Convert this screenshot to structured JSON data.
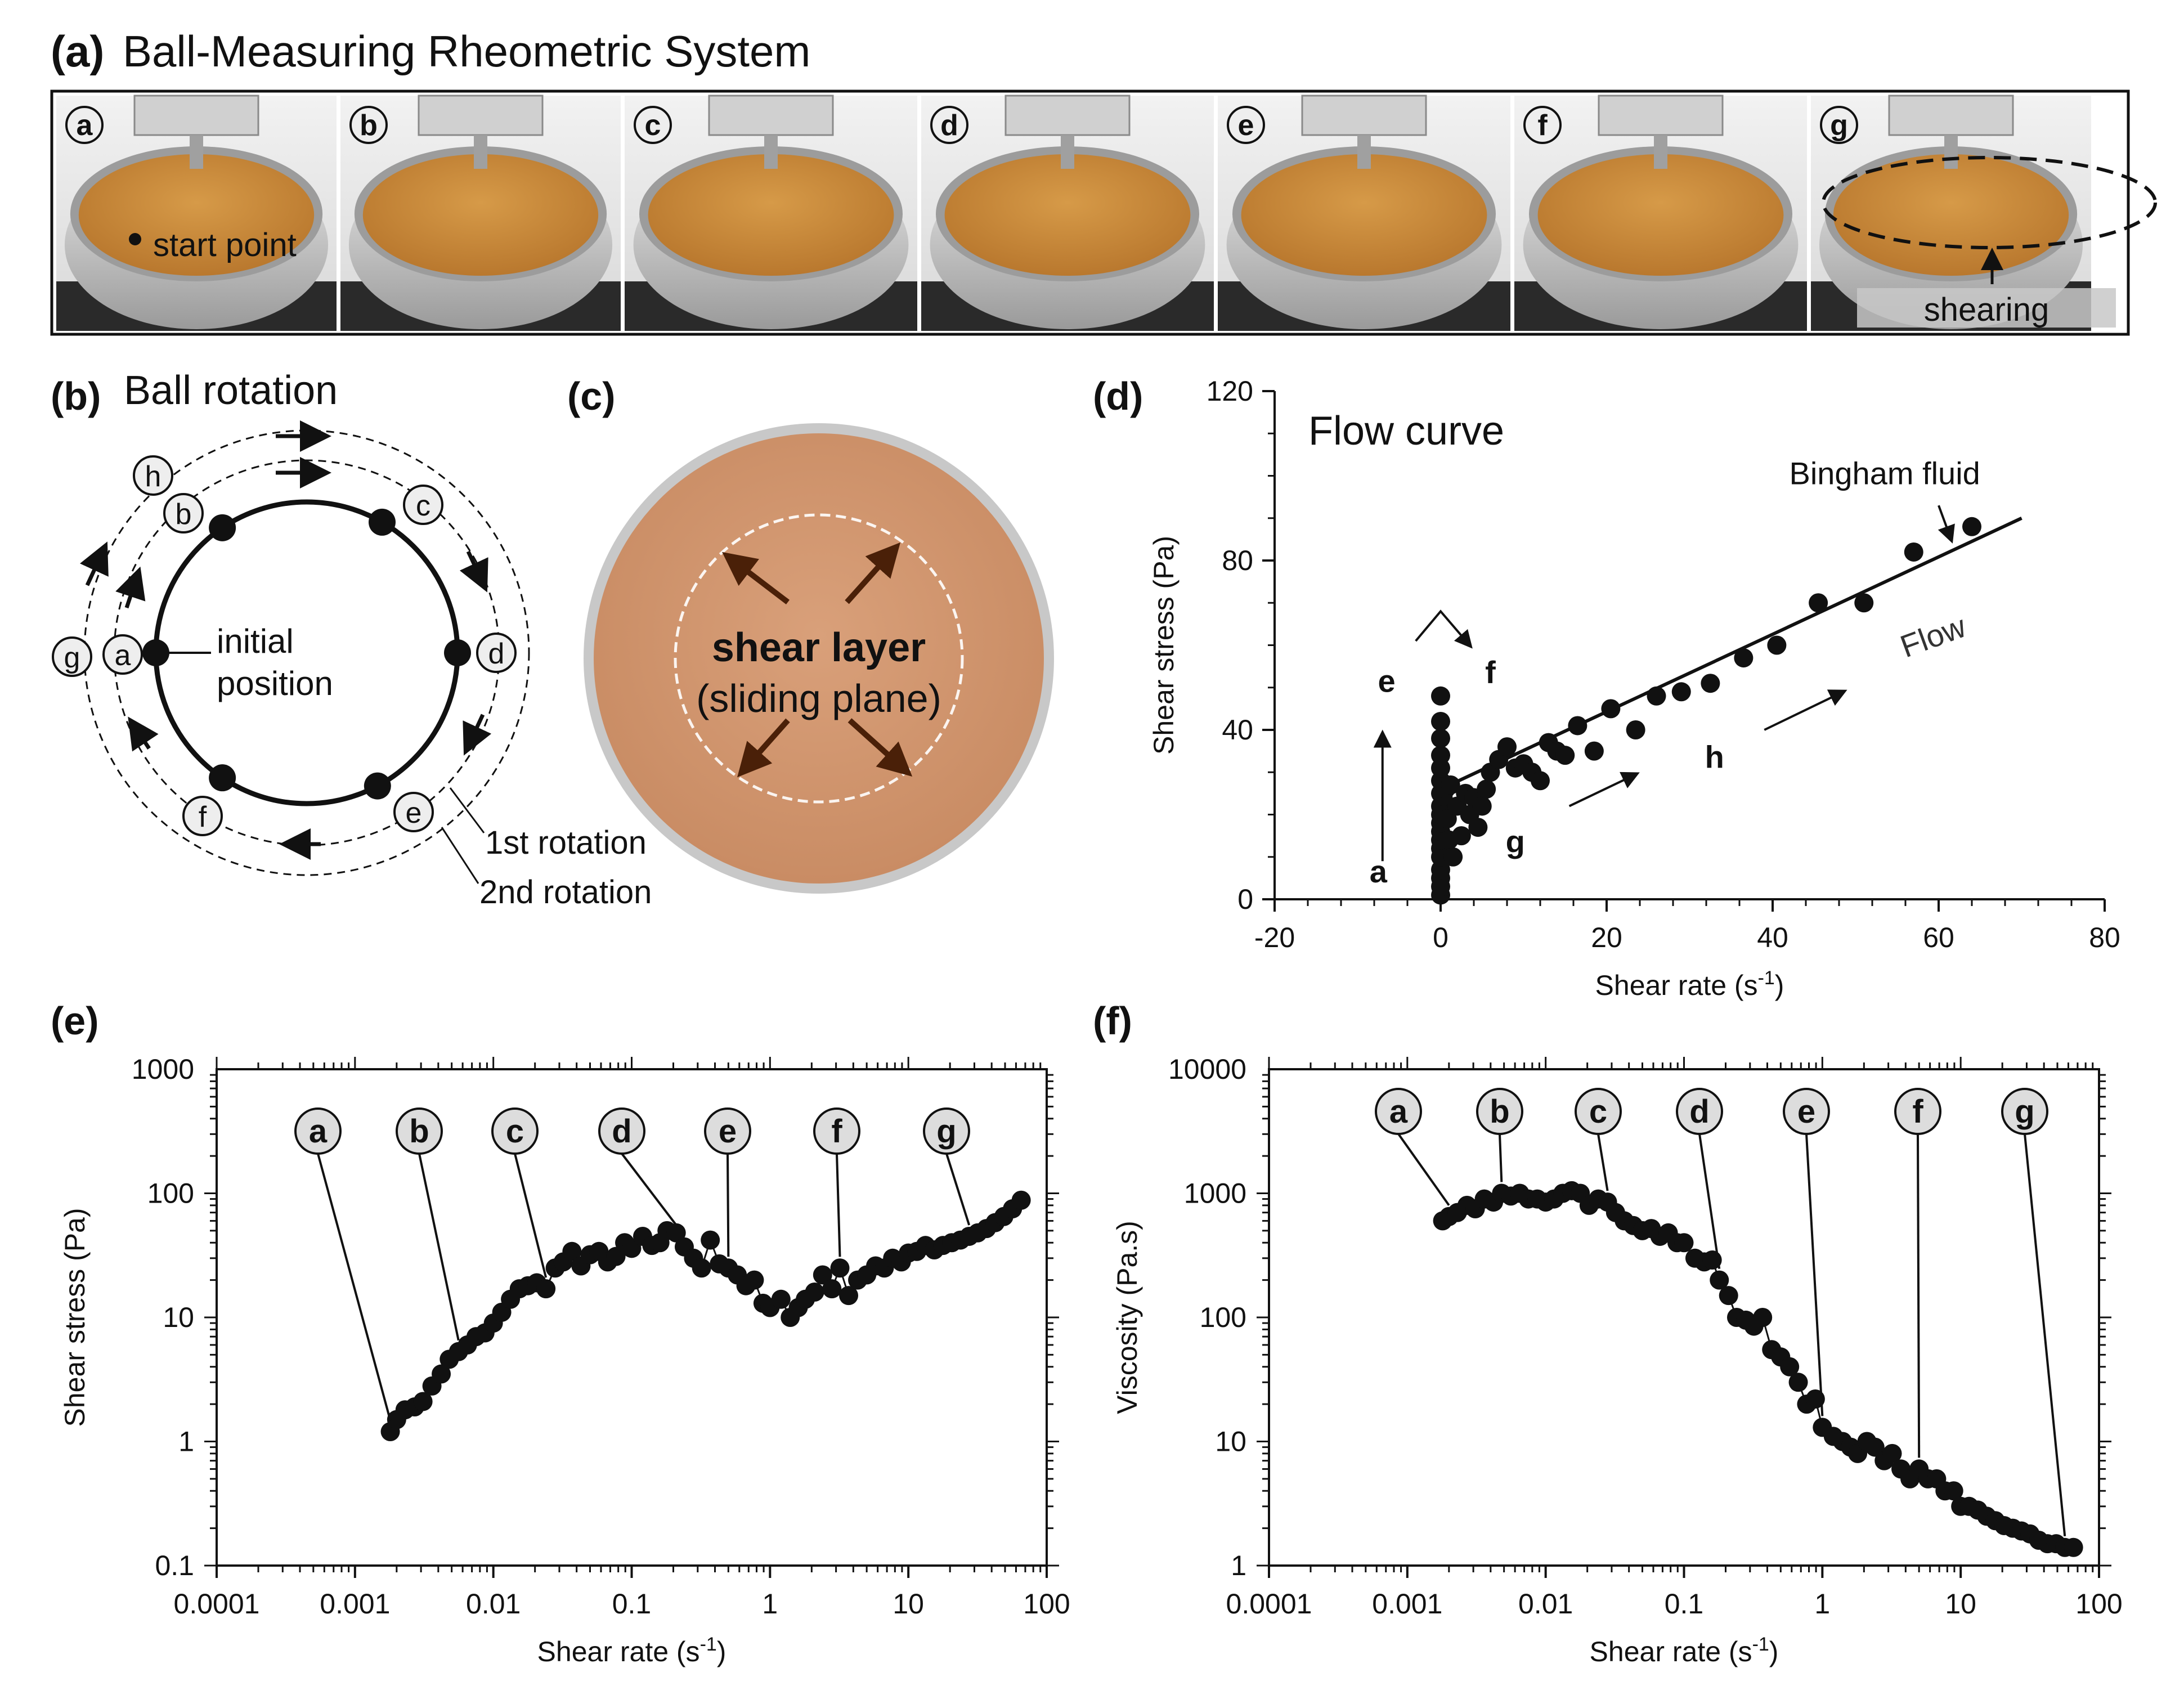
{
  "panel_a": {
    "label": "(a)",
    "title": "Ball-Measuring Rheometric System",
    "frames": [
      "a",
      "b",
      "c",
      "d",
      "e",
      "f",
      "g"
    ],
    "start_point_label": "start point",
    "shearing_label": "shearing"
  },
  "panel_b": {
    "label": "(b)",
    "title": "Ball rotation",
    "center_text_line1": "initial",
    "center_text_line2": "position",
    "rotation_1": "1st rotation",
    "rotation_2": "2nd rotation",
    "positions": [
      "a",
      "b",
      "c",
      "d",
      "e",
      "f",
      "g",
      "h"
    ]
  },
  "panel_c": {
    "label": "(c)",
    "line1": "shear layer",
    "line2": "(sliding plane)"
  },
  "panel_d": {
    "label": "(d)",
    "annotations": {
      "a": "a",
      "e": "e",
      "f": "f",
      "g": "g",
      "h": "h",
      "bingham": "Bingham fluid",
      "flow": "Flow"
    }
  },
  "panel_e": {
    "label": "(e)",
    "markers": [
      "a",
      "b",
      "c",
      "d",
      "e",
      "f",
      "g"
    ]
  },
  "panel_f": {
    "label": "(f)",
    "markers": [
      "a",
      "b",
      "c",
      "d",
      "e",
      "f",
      "g"
    ]
  },
  "colors": {
    "ink": "#111111",
    "paste": "#c98a3c",
    "paste_dark": "#a86a22",
    "plate": "#d9a57c",
    "metal": "#c9c9c9"
  },
  "chart_data": [
    {
      "id": "flow-curve",
      "type": "scatter",
      "title": "Flow curve",
      "xlabel": "Shear rate (s-1)",
      "ylabel": "Shear stress (Pa)",
      "xlim": [
        -20,
        80
      ],
      "ylim": [
        0,
        120
      ],
      "xticks": [
        -20,
        0,
        20,
        40,
        60,
        80
      ],
      "yticks": [
        0,
        40,
        80,
        120
      ],
      "x": [
        0,
        0,
        0,
        0,
        0,
        0,
        0,
        0,
        0,
        0,
        0,
        0,
        0,
        0,
        0,
        0,
        0,
        0,
        0.3,
        0.4,
        0.6,
        0.8,
        1,
        1.2,
        1.5,
        2,
        2.5,
        3,
        3.5,
        4,
        4.5,
        5,
        5.5,
        6,
        7,
        8,
        9,
        10,
        11,
        12,
        13,
        14,
        15,
        16.5,
        18.5,
        20.5,
        23.5,
        26,
        29,
        32.5,
        36.5,
        40.5,
        45.5,
        51,
        57,
        64
      ],
      "y": [
        1,
        3,
        5,
        7,
        10,
        12,
        14,
        16,
        18,
        20,
        22,
        25,
        28,
        31,
        34,
        38,
        42,
        48,
        24,
        20,
        26,
        19,
        14,
        27,
        10,
        22,
        15,
        25,
        20,
        24,
        17,
        22,
        26,
        30,
        33,
        36,
        31,
        32,
        30,
        28,
        37,
        35,
        34,
        41,
        35,
        45,
        40,
        48,
        49,
        51,
        57,
        60,
        70,
        70,
        82,
        88
      ],
      "fit_line": {
        "label": "Bingham fluid",
        "x": [
          0,
          70
        ],
        "y": [
          26,
          90
        ]
      }
    },
    {
      "id": "stress-vs-rate",
      "type": "scatter",
      "xlabel": "Shear rate (s-1)",
      "ylabel": "Shear stress (Pa)",
      "xscale": "log",
      "yscale": "log",
      "xlim": [
        0.0001,
        100
      ],
      "ylim": [
        0.1,
        1000
      ],
      "xtick_labels": [
        "0.0001",
        "0.001",
        "0.01",
        "0.1",
        "1",
        "10",
        "100"
      ],
      "ytick_labels": [
        "0.1",
        "1",
        "10",
        "100",
        "1000"
      ],
      "x": [
        0.0018,
        0.002,
        0.0023,
        0.0027,
        0.0031,
        0.0036,
        0.0042,
        0.0048,
        0.0056,
        0.0065,
        0.0075,
        0.0087,
        0.01,
        0.0115,
        0.0133,
        0.0154,
        0.0178,
        0.0206,
        0.024,
        0.028,
        0.032,
        0.037,
        0.043,
        0.05,
        0.058,
        0.067,
        0.077,
        0.089,
        0.1,
        0.12,
        0.14,
        0.16,
        0.18,
        0.21,
        0.24,
        0.28,
        0.32,
        0.37,
        0.43,
        0.5,
        0.58,
        0.67,
        0.77,
        0.89,
        1.0,
        1.2,
        1.4,
        1.6,
        1.8,
        2.1,
        2.4,
        2.8,
        3.2,
        3.7,
        4.3,
        5.0,
        5.8,
        6.7,
        7.7,
        8.9,
        10,
        11.5,
        13.3,
        15.4,
        17.8,
        20.6,
        23.8,
        27.5,
        31.7,
        36.7,
        42.4,
        49,
        56.6,
        65.4
      ],
      "y": [
        1.2,
        1.5,
        1.8,
        1.9,
        2.1,
        2.8,
        3.5,
        4.6,
        5.3,
        6.0,
        7.0,
        7.5,
        9.0,
        11,
        14,
        17,
        18,
        19,
        17,
        25,
        28,
        34,
        26,
        32,
        34,
        28,
        31,
        40,
        36,
        45,
        38,
        40,
        50,
        48,
        37,
        30,
        25,
        42,
        27,
        25,
        22,
        18,
        20,
        13,
        12,
        14,
        10,
        12,
        14,
        16,
        22,
        17,
        25,
        15,
        20,
        22,
        26,
        25,
        30,
        28,
        33,
        34,
        38,
        35,
        38,
        40,
        42,
        45,
        48,
        52,
        58,
        65,
        75,
        88
      ]
    },
    {
      "id": "viscosity-vs-rate",
      "type": "scatter",
      "xlabel": "Shear rate (s-1)",
      "ylabel": "Viscosity (Pa.s)",
      "xscale": "log",
      "yscale": "log",
      "xlim": [
        0.0001,
        100
      ],
      "ylim": [
        1,
        10000
      ],
      "xtick_labels": [
        "0.0001",
        "0.001",
        "0.01",
        "0.1",
        "1",
        "10",
        "100"
      ],
      "ytick_labels": [
        "1",
        "10",
        "100",
        "1000",
        "10000"
      ],
      "x": [
        0.0018,
        0.002,
        0.0023,
        0.0027,
        0.0031,
        0.0036,
        0.0042,
        0.0048,
        0.0056,
        0.0065,
        0.0075,
        0.0087,
        0.01,
        0.0115,
        0.0133,
        0.0154,
        0.0178,
        0.0206,
        0.024,
        0.028,
        0.032,
        0.037,
        0.043,
        0.05,
        0.058,
        0.067,
        0.077,
        0.089,
        0.1,
        0.12,
        0.14,
        0.16,
        0.18,
        0.21,
        0.24,
        0.28,
        0.32,
        0.37,
        0.43,
        0.5,
        0.58,
        0.67,
        0.77,
        0.89,
        1.0,
        1.2,
        1.4,
        1.6,
        1.8,
        2.1,
        2.4,
        2.8,
        3.2,
        3.7,
        4.3,
        5.0,
        5.8,
        6.7,
        7.7,
        8.9,
        10,
        11.5,
        13.3,
        15.4,
        17.8,
        20.6,
        23.8,
        27.5,
        31.7,
        36.7,
        42.4,
        49,
        56.6,
        65.4
      ],
      "y": [
        600,
        650,
        700,
        800,
        750,
        900,
        850,
        1000,
        950,
        1000,
        900,
        900,
        850,
        900,
        1000,
        1050,
        1000,
        800,
        900,
        850,
        700,
        600,
        550,
        500,
        520,
        450,
        480,
        400,
        400,
        300,
        280,
        290,
        200,
        150,
        100,
        95,
        85,
        100,
        55,
        48,
        40,
        30,
        20,
        22,
        13,
        11,
        10,
        9,
        8,
        10,
        9,
        7,
        8,
        6,
        5,
        6,
        5,
        5,
        4,
        4,
        3,
        3,
        2.8,
        2.5,
        2.3,
        2.1,
        2,
        1.9,
        1.8,
        1.6,
        1.5,
        1.5,
        1.4,
        1.4
      ]
    }
  ]
}
